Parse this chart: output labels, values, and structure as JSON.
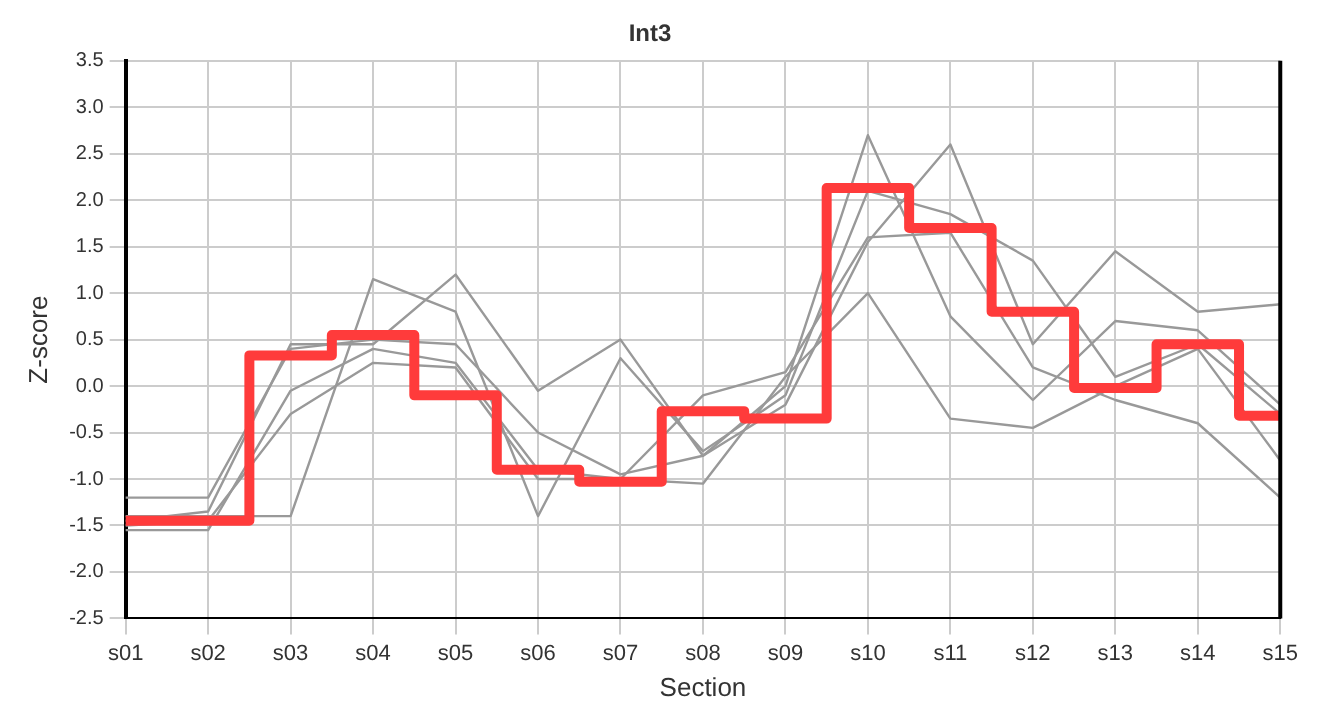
{
  "chart_data": {
    "type": "line",
    "title": "Int3",
    "xlabel": "Section",
    "ylabel": "Z-score",
    "categories": [
      "s01",
      "s02",
      "s03",
      "s04",
      "s05",
      "s06",
      "s07",
      "s08",
      "s09",
      "s10",
      "s11",
      "s12",
      "s13",
      "s14",
      "s15"
    ],
    "series": [
      {
        "color": "#999999",
        "values": [
          -1.2,
          -1.2,
          0.4,
          0.5,
          0.45,
          -0.5,
          -0.95,
          -0.75,
          0.0,
          2.7,
          0.75,
          -0.15,
          0.7,
          0.6,
          -0.2
        ]
      },
      {
        "color": "#999999",
        "values": [
          -1.4,
          -1.4,
          -1.4,
          1.15,
          0.8,
          -1.4,
          0.3,
          -0.7,
          -0.1,
          2.1,
          1.85,
          1.35,
          0.1,
          0.45,
          -0.3
        ]
      },
      {
        "color": "#999999",
        "values": [
          -1.45,
          -1.35,
          0.45,
          0.45,
          1.2,
          -0.05,
          0.5,
          -0.75,
          -0.2,
          1.55,
          2.6,
          0.45,
          1.45,
          0.8,
          0.88
        ]
      },
      {
        "color": "#999999",
        "values": [
          -1.55,
          -1.55,
          -0.05,
          0.4,
          0.25,
          -0.9,
          -1.0,
          -0.1,
          0.15,
          1.6,
          1.65,
          0.2,
          -0.15,
          -0.4,
          -1.2
        ]
      },
      {
        "color": "#999999",
        "values": [
          -1.5,
          -1.45,
          -0.3,
          0.25,
          0.2,
          -1.0,
          -1.0,
          -1.05,
          0.1,
          1.0,
          -0.35,
          -0.45,
          0.0,
          0.4,
          -0.8
        ]
      },
      {
        "type": "step",
        "color": "#ff3b3b",
        "values": [
          -1.45,
          -1.45,
          0.33,
          0.55,
          -0.1,
          -0.9,
          -1.03,
          -0.27,
          -0.35,
          2.13,
          1.7,
          0.8,
          -0.02,
          0.45,
          -0.32
        ]
      }
    ],
    "ylim": [
      -2.5,
      3.5
    ],
    "yticks": [
      {
        "value": -2.5,
        "label": "-2.5"
      },
      {
        "value": -2,
        "label": "-2.0"
      },
      {
        "value": -1.5,
        "label": "-1.5"
      },
      {
        "value": -1,
        "label": "-1.0"
      },
      {
        "value": -0.5,
        "label": "-0.5"
      },
      {
        "value": 0,
        "label": "0.0"
      },
      {
        "value": 0.5,
        "label": "0.5"
      },
      {
        "value": 1,
        "label": "1.0"
      },
      {
        "value": 1.5,
        "label": "1.5"
      },
      {
        "value": 2,
        "label": "2.0"
      },
      {
        "value": 2.5,
        "label": "2.5"
      },
      {
        "value": 3,
        "label": "3.0"
      },
      {
        "value": 3.5,
        "label": "3.5"
      }
    ],
    "grid": true,
    "legend": false,
    "marker": "none",
    "line_style": "solid"
  }
}
